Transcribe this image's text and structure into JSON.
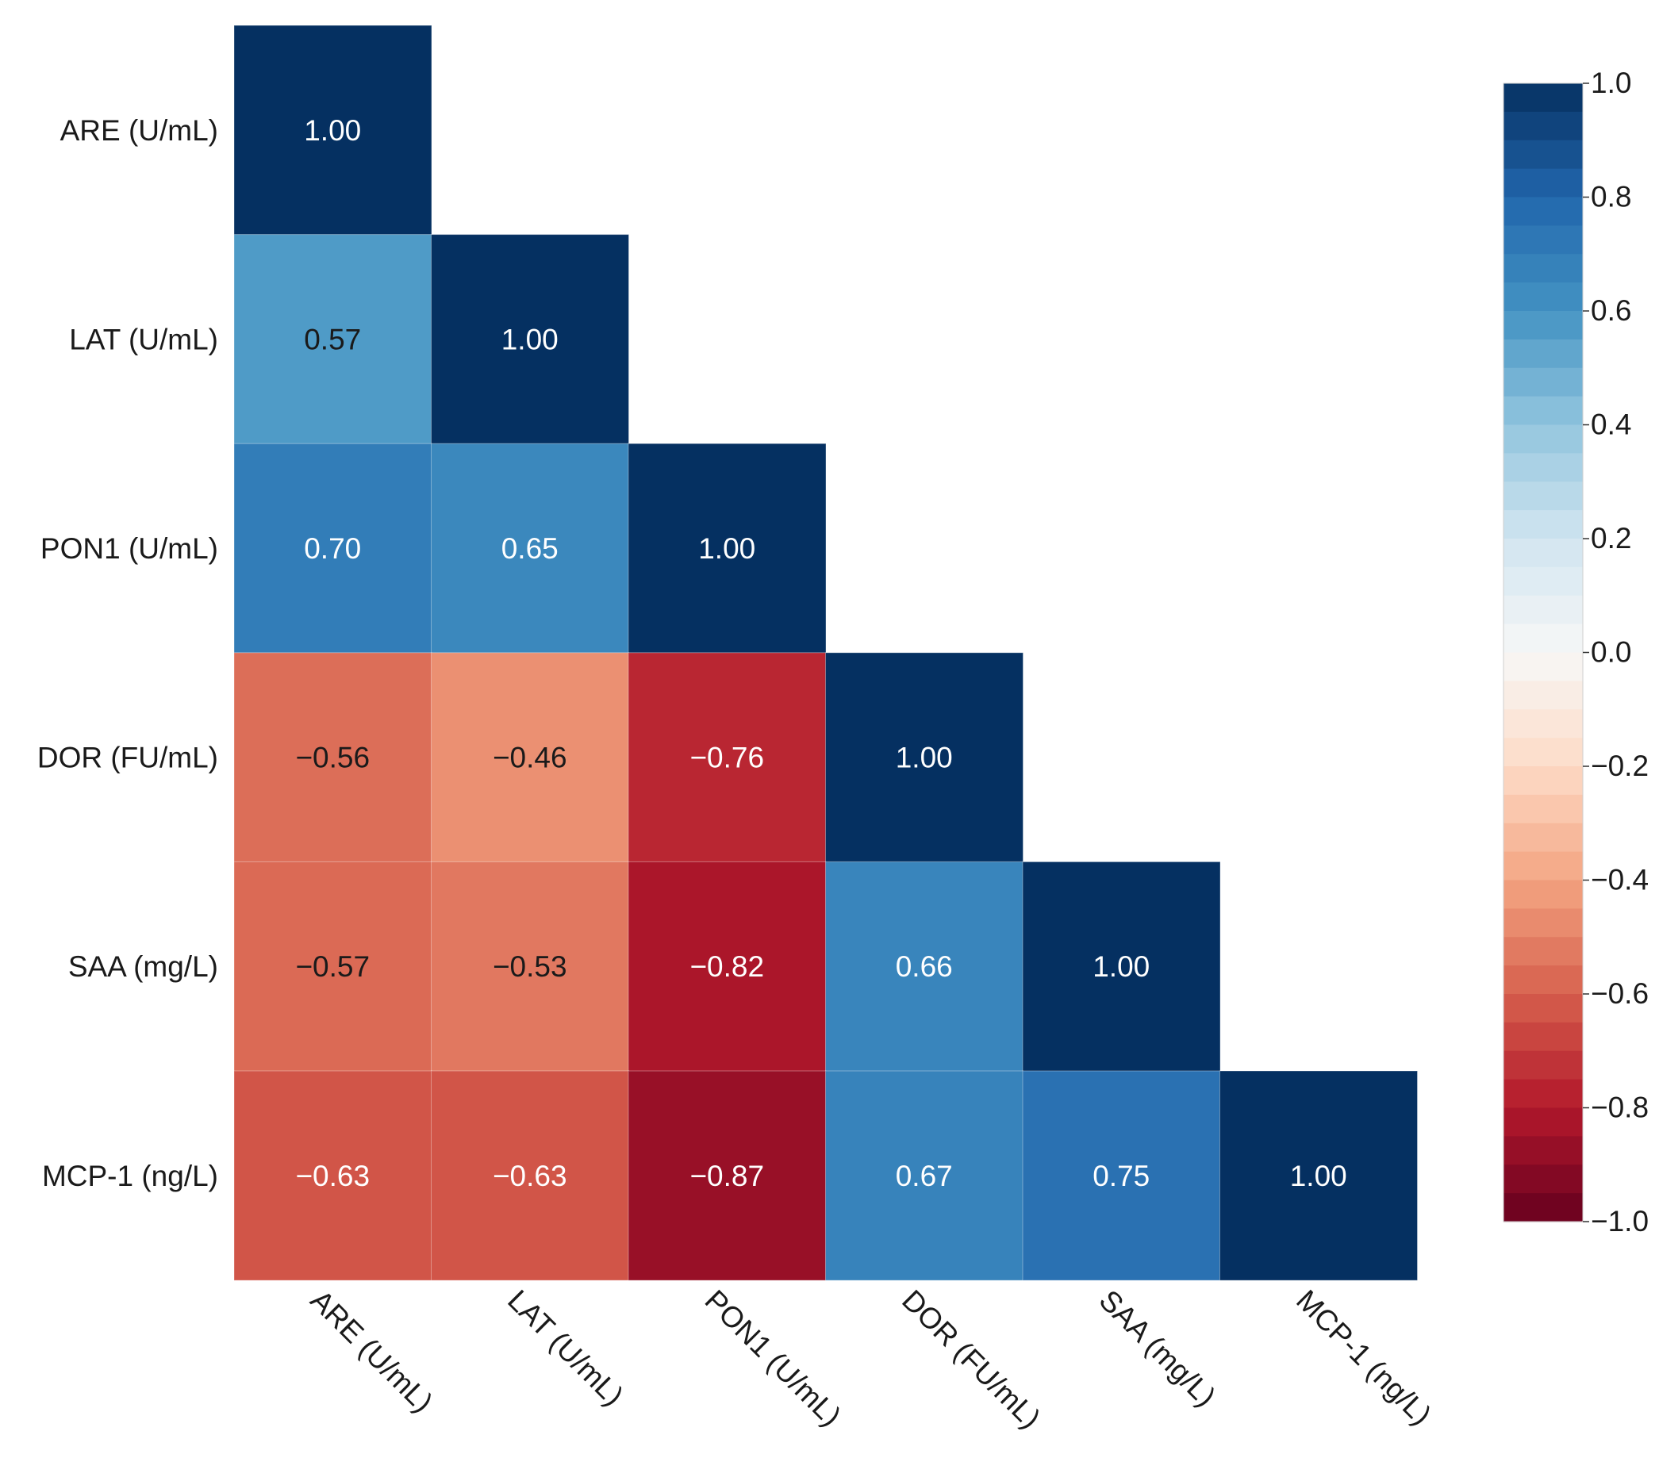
{
  "chart_data": {
    "type": "heatmap",
    "variables": [
      "ARE (U/mL)",
      "LAT (U/mL)",
      "PON1 (U/mL)",
      "DOR (FU/mL)",
      "SAA (mg/L)",
      "MCP-1 (ng/L)"
    ],
    "matrix": [
      [
        1.0,
        null,
        null,
        null,
        null,
        null
      ],
      [
        0.57,
        1.0,
        null,
        null,
        null,
        null
      ],
      [
        0.7,
        0.65,
        1.0,
        null,
        null,
        null
      ],
      [
        -0.56,
        -0.46,
        -0.76,
        1.0,
        null,
        null
      ],
      [
        -0.57,
        -0.53,
        -0.82,
        0.66,
        1.0,
        null
      ],
      [
        -0.63,
        -0.63,
        -0.87,
        0.67,
        0.75,
        1.0
      ]
    ],
    "cell_labels": [
      [
        "1.00",
        "",
        "",
        "",
        "",
        ""
      ],
      [
        "0.57",
        "1.00",
        "",
        "",
        "",
        ""
      ],
      [
        "0.70",
        "0.65",
        "1.00",
        "",
        "",
        ""
      ],
      [
        "−0.56",
        "−0.46",
        "−0.76",
        "1.00",
        "",
        ""
      ],
      [
        "−0.57",
        "−0.53",
        "−0.82",
        "0.66",
        "1.00",
        ""
      ],
      [
        "−0.63",
        "−0.63",
        "−0.87",
        "0.67",
        "0.75",
        "1.00"
      ]
    ],
    "mask": "upper-triangle",
    "colormap": "RdBu",
    "colormap_stops": [
      "#67001f",
      "#b2182b",
      "#d6604d",
      "#f4a582",
      "#fddbc7",
      "#f7f7f7",
      "#d1e5f0",
      "#92c5de",
      "#4393c3",
      "#2166ac",
      "#053061"
    ],
    "vmin": -1.0,
    "vmax": 1.0,
    "colorbar": {
      "ticks": [
        1.0,
        0.8,
        0.6,
        0.4,
        0.2,
        0.0,
        -0.2,
        -0.4,
        -0.6,
        -0.8,
        -1.0
      ],
      "tick_labels": [
        "1.0",
        "0.8",
        "0.6",
        "0.4",
        "0.2",
        "0.0",
        "−0.2",
        "−0.4",
        "−0.6",
        "−0.8",
        "−1.0"
      ]
    },
    "xlabel": "",
    "ylabel": ""
  }
}
